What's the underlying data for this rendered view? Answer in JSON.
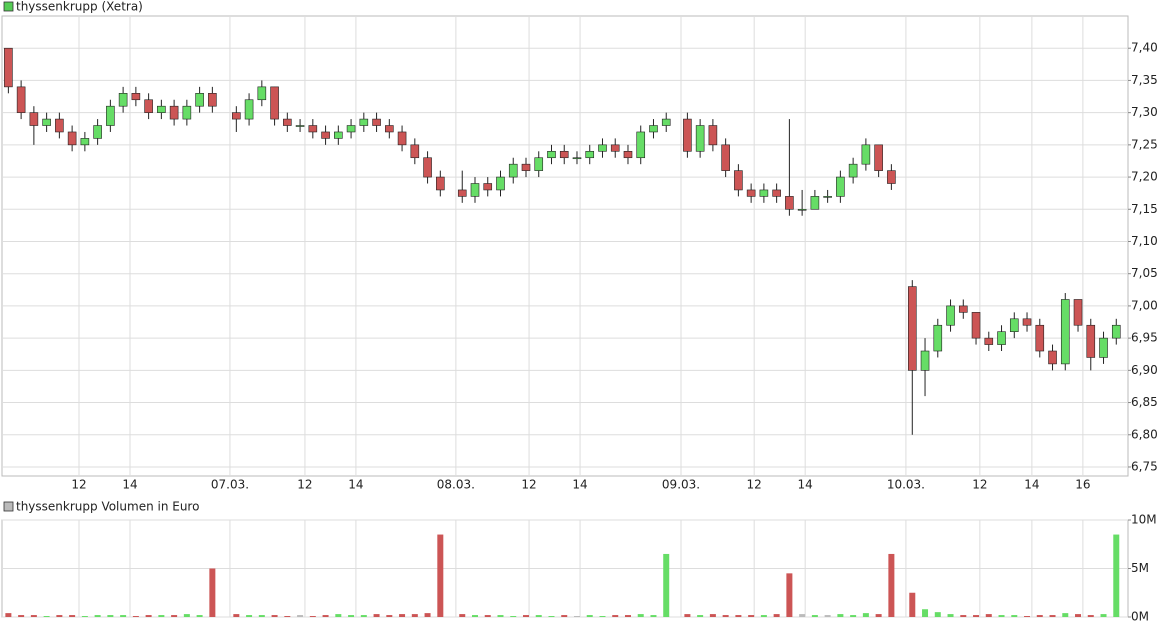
{
  "chart_data": [
    {
      "type": "candlestick",
      "up_color": "#66dd66",
      "down_color": "#cc5555",
      "grid": true,
      "xlim": [
        0,
        44.16
      ],
      "ylim": [
        6.736,
        7.45
      ],
      "xticks": [
        {
          "value": 3.02,
          "label": "12"
        },
        {
          "value": 5.02,
          "label": "14"
        },
        {
          "value": 8.94,
          "label": "07.03."
        },
        {
          "value": 11.88,
          "label": "12"
        },
        {
          "value": 13.88,
          "label": "14"
        },
        {
          "value": 17.8,
          "label": "08.03."
        },
        {
          "value": 20.67,
          "label": "12"
        },
        {
          "value": 22.67,
          "label": "14"
        },
        {
          "value": 26.63,
          "label": "09.03."
        },
        {
          "value": 29.5,
          "label": "12"
        },
        {
          "value": 31.5,
          "label": "14"
        },
        {
          "value": 35.45,
          "label": "10.03."
        },
        {
          "value": 38.35,
          "label": "12"
        },
        {
          "value": 40.39,
          "label": "14"
        },
        {
          "value": 42.39,
          "label": "16"
        }
      ],
      "yticks": [
        {
          "value": 6.75,
          "label": "6,75"
        },
        {
          "value": 6.8,
          "label": "6,80"
        },
        {
          "value": 6.85,
          "label": "6,85"
        },
        {
          "value": 6.9,
          "label": "6,90"
        },
        {
          "value": 6.95,
          "label": "6,95"
        },
        {
          "value": 7.0,
          "label": "7,00"
        },
        {
          "value": 7.05,
          "label": "7,05"
        },
        {
          "value": 7.1,
          "label": "7,10"
        },
        {
          "value": 7.15,
          "label": "7,15"
        },
        {
          "value": 7.2,
          "label": "7,20"
        },
        {
          "value": 7.25,
          "label": "7,25"
        },
        {
          "value": 7.3,
          "label": "7,30"
        },
        {
          "value": 7.35,
          "label": "7,35"
        },
        {
          "value": 7.4,
          "label": "7,40"
        }
      ],
      "x": [
        0.25,
        0.75,
        1.25,
        1.75,
        2.25,
        2.75,
        3.25,
        3.75,
        4.25,
        4.75,
        5.25,
        5.75,
        6.25,
        6.75,
        7.25,
        7.75,
        8.25,
        9.19,
        9.69,
        10.19,
        10.69,
        11.19,
        11.69,
        12.19,
        12.69,
        13.19,
        13.69,
        14.19,
        14.69,
        15.19,
        15.69,
        16.19,
        16.69,
        17.19,
        18.05,
        18.55,
        19.05,
        19.55,
        20.05,
        20.55,
        21.05,
        21.55,
        22.05,
        22.55,
        23.05,
        23.55,
        24.05,
        24.55,
        25.05,
        25.55,
        26.05,
        26.88,
        27.38,
        27.88,
        28.38,
        28.88,
        29.38,
        29.88,
        30.38,
        30.88,
        31.38,
        31.88,
        32.38,
        32.88,
        33.38,
        33.88,
        34.38,
        34.88,
        35.7,
        36.2,
        36.7,
        37.2,
        37.7,
        38.2,
        38.7,
        39.2,
        39.7,
        40.2,
        40.7,
        41.2,
        41.7,
        42.2,
        42.7,
        43.2,
        43.7
      ],
      "series": [
        {
          "name": "thyssenkrupp (Xetra)",
          "color": "#55cc55",
          "open": [
            7.4,
            7.34,
            7.3,
            7.28,
            7.29,
            7.27,
            7.25,
            7.26,
            7.28,
            7.31,
            7.33,
            7.32,
            7.3,
            7.31,
            7.29,
            7.31,
            7.33,
            7.3,
            7.29,
            7.32,
            7.34,
            7.29,
            7.28,
            7.28,
            7.27,
            7.26,
            7.27,
            7.28,
            7.29,
            7.28,
            7.27,
            7.25,
            7.23,
            7.2,
            7.18,
            7.17,
            7.19,
            7.18,
            7.2,
            7.22,
            7.21,
            7.23,
            7.24,
            7.23,
            7.23,
            7.24,
            7.25,
            7.24,
            7.23,
            7.27,
            7.28,
            7.29,
            7.24,
            7.28,
            7.25,
            7.21,
            7.18,
            7.17,
            7.18,
            7.17,
            7.15,
            7.15,
            7.17,
            7.17,
            7.2,
            7.22,
            7.25,
            7.21,
            7.03,
            6.9,
            6.93,
            6.97,
            7.0,
            6.99,
            6.95,
            6.94,
            6.96,
            6.98,
            6.97,
            6.93,
            6.91,
            7.01,
            6.97,
            6.92,
            6.95
          ],
          "high": [
            7.4,
            7.35,
            7.31,
            7.3,
            7.3,
            7.28,
            7.27,
            7.29,
            7.32,
            7.34,
            7.34,
            7.33,
            7.32,
            7.32,
            7.32,
            7.34,
            7.34,
            7.31,
            7.33,
            7.35,
            7.34,
            7.3,
            7.29,
            7.29,
            7.28,
            7.28,
            7.29,
            7.3,
            7.3,
            7.29,
            7.28,
            7.26,
            7.24,
            7.21,
            7.21,
            7.2,
            7.2,
            7.21,
            7.23,
            7.23,
            7.24,
            7.25,
            7.25,
            7.24,
            7.25,
            7.26,
            7.26,
            7.25,
            7.28,
            7.29,
            7.3,
            7.3,
            7.29,
            7.29,
            7.26,
            7.22,
            7.19,
            7.19,
            7.19,
            7.29,
            7.18,
            7.18,
            7.18,
            7.21,
            7.23,
            7.26,
            7.25,
            7.22,
            7.04,
            6.95,
            6.98,
            7.01,
            7.01,
            6.99,
            6.96,
            6.97,
            6.99,
            6.99,
            6.98,
            6.94,
            7.02,
            7.01,
            6.98,
            6.96,
            6.98
          ],
          "low": [
            7.33,
            7.29,
            7.25,
            7.27,
            7.26,
            7.24,
            7.24,
            7.25,
            7.27,
            7.3,
            7.31,
            7.29,
            7.29,
            7.28,
            7.28,
            7.3,
            7.3,
            7.27,
            7.28,
            7.31,
            7.28,
            7.27,
            7.27,
            7.26,
            7.25,
            7.25,
            7.26,
            7.27,
            7.27,
            7.26,
            7.24,
            7.22,
            7.19,
            7.17,
            7.16,
            7.16,
            7.17,
            7.17,
            7.19,
            7.2,
            7.2,
            7.22,
            7.22,
            7.22,
            7.22,
            7.23,
            7.23,
            7.22,
            7.22,
            7.26,
            7.27,
            7.23,
            7.23,
            7.24,
            7.2,
            7.17,
            7.16,
            7.16,
            7.16,
            7.14,
            7.14,
            7.15,
            7.16,
            7.16,
            7.19,
            7.21,
            7.2,
            7.18,
            6.8,
            6.86,
            6.92,
            6.96,
            6.98,
            6.94,
            6.93,
            6.93,
            6.95,
            6.96,
            6.92,
            6.9,
            6.9,
            6.96,
            6.9,
            6.91,
            6.94
          ],
          "close": [
            7.34,
            7.3,
            7.28,
            7.29,
            7.27,
            7.25,
            7.26,
            7.28,
            7.31,
            7.33,
            7.32,
            7.3,
            7.31,
            7.29,
            7.31,
            7.33,
            7.31,
            7.29,
            7.32,
            7.34,
            7.29,
            7.28,
            7.28,
            7.27,
            7.26,
            7.27,
            7.28,
            7.29,
            7.28,
            7.27,
            7.25,
            7.23,
            7.2,
            7.18,
            7.17,
            7.19,
            7.18,
            7.2,
            7.22,
            7.21,
            7.23,
            7.24,
            7.23,
            7.23,
            7.24,
            7.25,
            7.24,
            7.23,
            7.27,
            7.28,
            7.29,
            7.24,
            7.28,
            7.25,
            7.21,
            7.18,
            7.17,
            7.18,
            7.17,
            7.15,
            7.15,
            7.17,
            7.17,
            7.2,
            7.22,
            7.25,
            7.21,
            7.19,
            6.9,
            6.93,
            6.97,
            7.0,
            6.99,
            6.95,
            6.94,
            6.96,
            6.98,
            6.97,
            6.93,
            6.91,
            7.01,
            6.97,
            6.92,
            6.95,
            6.97
          ]
        }
      ]
    },
    {
      "type": "bar",
      "grid": true,
      "xlim": [
        0,
        44.16
      ],
      "ylim": [
        0,
        10000000
      ],
      "yticks": [
        {
          "value": 0,
          "label": "0M"
        },
        {
          "value": 5000000,
          "label": "5M"
        },
        {
          "value": 10000000,
          "label": "10M"
        }
      ],
      "x": [
        0.25,
        0.75,
        1.25,
        1.75,
        2.25,
        2.75,
        3.25,
        3.75,
        4.25,
        4.75,
        5.25,
        5.75,
        6.25,
        6.75,
        7.25,
        7.75,
        8.25,
        9.19,
        9.69,
        10.19,
        10.69,
        11.19,
        11.69,
        12.19,
        12.69,
        13.19,
        13.69,
        14.19,
        14.69,
        15.19,
        15.69,
        16.19,
        16.69,
        17.19,
        18.05,
        18.55,
        19.05,
        19.55,
        20.05,
        20.55,
        21.05,
        21.55,
        22.05,
        22.55,
        23.05,
        23.55,
        24.05,
        24.55,
        25.05,
        25.55,
        26.05,
        26.88,
        27.38,
        27.88,
        28.38,
        28.88,
        29.38,
        29.88,
        30.38,
        30.88,
        31.38,
        31.88,
        32.38,
        32.88,
        33.38,
        33.88,
        34.38,
        34.88,
        35.7,
        36.2,
        36.7,
        37.2,
        37.7,
        38.2,
        38.7,
        39.2,
        39.7,
        40.2,
        40.7,
        41.2,
        41.7,
        42.2,
        42.7,
        43.2,
        43.7
      ],
      "series": [
        {
          "name": "thyssenkrupp Volumen in Euro",
          "color": "#bbbbbb",
          "values": [
            400000,
            200000,
            200000,
            100000,
            200000,
            200000,
            100000,
            200000,
            200000,
            200000,
            100000,
            200000,
            200000,
            200000,
            300000,
            200000,
            5000000,
            300000,
            200000,
            200000,
            200000,
            100000,
            200000,
            100000,
            200000,
            300000,
            200000,
            200000,
            300000,
            200000,
            300000,
            300000,
            400000,
            8500000,
            300000,
            200000,
            200000,
            200000,
            100000,
            200000,
            200000,
            100000,
            200000,
            100000,
            200000,
            100000,
            200000,
            200000,
            300000,
            200000,
            6500000,
            300000,
            200000,
            300000,
            200000,
            200000,
            200000,
            200000,
            300000,
            4500000,
            300000,
            200000,
            200000,
            300000,
            200000,
            400000,
            300000,
            6500000,
            2500000,
            800000,
            500000,
            300000,
            200000,
            200000,
            300000,
            200000,
            200000,
            100000,
            200000,
            200000,
            400000,
            300000,
            200000,
            300000,
            8500000
          ]
        }
      ]
    }
  ]
}
